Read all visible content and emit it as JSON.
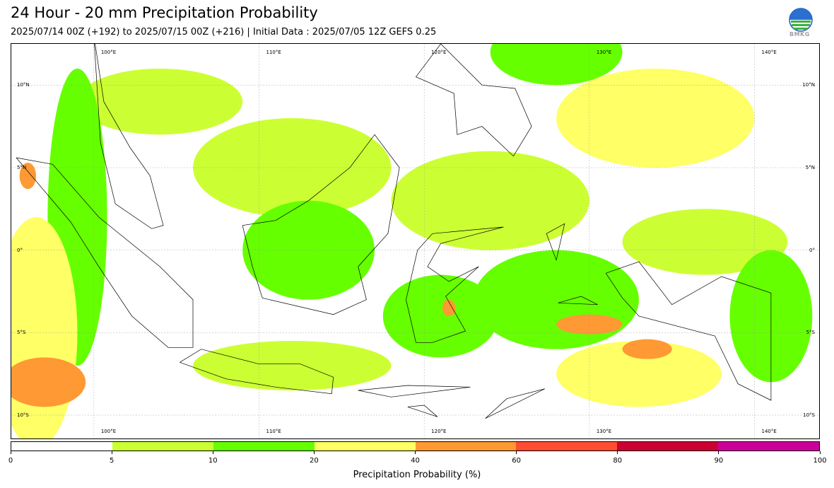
{
  "title": "24 Hour - 20 mm Precipitation Probability",
  "subtitle": "2025/07/14 00Z (+192) to 2025/07/15 00Z (+216) | Initial Data : 2025/07/05 12Z GEFS 0.25",
  "logo": {
    "icon": "bmkg-logo-icon",
    "text": "BMKG"
  },
  "map": {
    "lon_range": [
      95,
      144
    ],
    "lat_range": [
      -11.5,
      12.5
    ],
    "lon_ticks": [
      {
        "value": 100,
        "label": "100°E"
      },
      {
        "value": 110,
        "label": "110°E"
      },
      {
        "value": 120,
        "label": "120°E"
      },
      {
        "value": 130,
        "label": "130°E"
      },
      {
        "value": 140,
        "label": "140°E"
      }
    ],
    "lat_ticks": [
      {
        "value": 10,
        "label": "10°N"
      },
      {
        "value": 5,
        "label": "5°N"
      },
      {
        "value": 0,
        "label": "0°"
      },
      {
        "value": -5,
        "label": "5°S"
      },
      {
        "value": -10,
        "label": "10°S"
      }
    ],
    "fields": [
      {
        "class": "5-10",
        "color": "#ccff33",
        "lon": 104.0,
        "lat": 9.0,
        "rx": 5.0,
        "ry": 2.0
      },
      {
        "class": "5-10",
        "color": "#ccff33",
        "lon": 112.0,
        "lat": 5.0,
        "rx": 6.0,
        "ry": 3.0
      },
      {
        "class": "5-10",
        "color": "#ccff33",
        "lon": 124.0,
        "lat": 3.0,
        "rx": 6.0,
        "ry": 3.0
      },
      {
        "class": "5-10",
        "color": "#ccff33",
        "lon": 112.0,
        "lat": -7.0,
        "rx": 6.0,
        "ry": 1.5
      },
      {
        "class": "5-10",
        "color": "#ccff33",
        "lon": 137.0,
        "lat": 0.5,
        "rx": 5.0,
        "ry": 2.0
      },
      {
        "class": "10-20",
        "color": "#66ff00",
        "lon": 99.0,
        "lat": 2.0,
        "rx": 1.8,
        "ry": 9.0
      },
      {
        "class": "10-20",
        "color": "#66ff00",
        "lon": 113.0,
        "lat": 0.0,
        "rx": 4.0,
        "ry": 3.0
      },
      {
        "class": "10-20",
        "color": "#66ff00",
        "lon": 121.0,
        "lat": -4.0,
        "rx": 3.5,
        "ry": 2.5
      },
      {
        "class": "10-20",
        "color": "#66ff00",
        "lon": 128.0,
        "lat": -3.0,
        "rx": 5.0,
        "ry": 3.0
      },
      {
        "class": "10-20",
        "color": "#66ff00",
        "lon": 141.0,
        "lat": -4.0,
        "rx": 2.5,
        "ry": 4.0
      },
      {
        "class": "10-20",
        "color": "#66ff00",
        "lon": 128.0,
        "lat": 12.0,
        "rx": 4.0,
        "ry": 2.0
      },
      {
        "class": "20-40",
        "color": "#ffff66",
        "lon": 96.5,
        "lat": -5.0,
        "rx": 2.5,
        "ry": 7.0
      },
      {
        "class": "20-40",
        "color": "#ffff66",
        "lon": 134.0,
        "lat": 8.0,
        "rx": 6.0,
        "ry": 3.0
      },
      {
        "class": "20-40",
        "color": "#ffff66",
        "lon": 133.0,
        "lat": -7.5,
        "rx": 5.0,
        "ry": 2.0
      },
      {
        "class": "40-60",
        "color": "#ff9933",
        "lon": 97.0,
        "lat": -8.0,
        "rx": 2.5,
        "ry": 1.5
      },
      {
        "class": "40-60",
        "color": "#ff9933",
        "lon": 130.0,
        "lat": -4.5,
        "rx": 2.0,
        "ry": 0.6
      },
      {
        "class": "40-60",
        "color": "#ff9933",
        "lon": 133.5,
        "lat": -6.0,
        "rx": 1.5,
        "ry": 0.6
      },
      {
        "class": "40-60",
        "color": "#ff9933",
        "lon": 121.5,
        "lat": -3.5,
        "rx": 0.4,
        "ry": 0.5
      },
      {
        "class": "40-60",
        "color": "#ff9933",
        "lon": 96.0,
        "lat": 4.5,
        "rx": 0.5,
        "ry": 0.8
      }
    ]
  },
  "colorbar": {
    "title": "Precipitation Probability (%)",
    "ticks": [
      "0",
      "5",
      "10",
      "20",
      "40",
      "60",
      "80",
      "90",
      "100"
    ],
    "colors": [
      "#ffffff",
      "#ccff33",
      "#66ff00",
      "#ffff66",
      "#ff9933",
      "#ff4d33",
      "#cc0033",
      "#cc0099"
    ]
  }
}
